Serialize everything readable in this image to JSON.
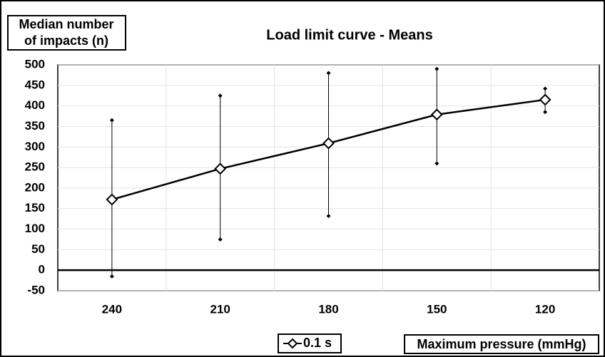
{
  "chart_data": {
    "type": "line",
    "title": "Load limit curve - Means",
    "y_label": [
      "Median number",
      "of impacts (n)"
    ],
    "x_label": "Maximum pressure (mmHg)",
    "categories": [
      "240",
      "210",
      "180",
      "150",
      "120"
    ],
    "series": [
      {
        "name": "0.1 s",
        "color": "#000000",
        "values": [
          172,
          247,
          309,
          379,
          415
        ],
        "error_low": [
          -15,
          75,
          132,
          260,
          385
        ],
        "error_high": [
          365,
          425,
          480,
          490,
          442
        ]
      }
    ],
    "ylim": [
      -50,
      500
    ],
    "yticks": [
      -50,
      0,
      50,
      100,
      150,
      200,
      250,
      300,
      350,
      400,
      450,
      500
    ],
    "grid": true,
    "legend": "bottom"
  }
}
